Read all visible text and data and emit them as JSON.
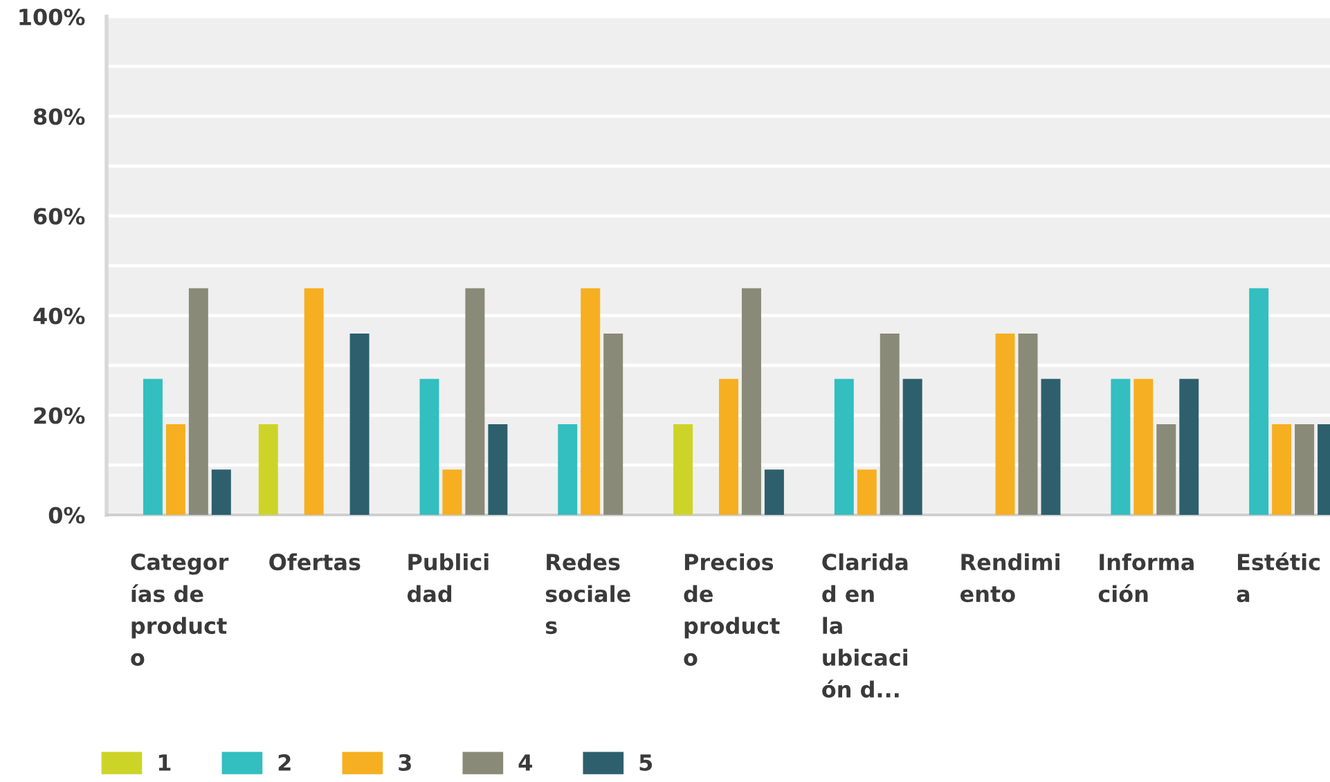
{
  "chart_data": {
    "type": "bar",
    "categories": [
      "Categor\nías de\nproduct\no",
      "Ofertas",
      "Publici\ndad",
      "Redes\nsociale\ns",
      "Precios\nde\nproduct\no",
      "Clarida\nd en\nla\nubicaci\nón d...",
      "Rendimi\nento",
      "Informa\nción",
      "Estétic\na"
    ],
    "series": [
      {
        "name": "1",
        "color": "#cdd428",
        "values": [
          0,
          18.2,
          0,
          0,
          18.2,
          0,
          0,
          0,
          0
        ]
      },
      {
        "name": "2",
        "color": "#33bec0",
        "values": [
          27.3,
          0,
          27.3,
          18.2,
          0,
          27.3,
          0,
          27.3,
          45.5
        ]
      },
      {
        "name": "3",
        "color": "#f6af21",
        "values": [
          18.2,
          45.5,
          9.1,
          45.5,
          27.3,
          9.1,
          36.4,
          27.3,
          18.2
        ]
      },
      {
        "name": "4",
        "color": "#898a78",
        "values": [
          45.5,
          0,
          45.5,
          36.4,
          45.5,
          36.4,
          36.4,
          18.2,
          18.2
        ]
      },
      {
        "name": "5",
        "color": "#2d606c",
        "values": [
          9.1,
          36.4,
          18.2,
          0,
          9.1,
          27.3,
          27.3,
          27.3,
          18.2
        ]
      }
    ],
    "ylim": [
      0,
      100
    ],
    "yticks": [
      {
        "value": 0,
        "label": "0%"
      },
      {
        "value": 10,
        "label": null
      },
      {
        "value": 20,
        "label": "20%"
      },
      {
        "value": 30,
        "label": null
      },
      {
        "value": 40,
        "label": "40%"
      },
      {
        "value": 50,
        "label": null
      },
      {
        "value": 60,
        "label": "60%"
      },
      {
        "value": 70,
        "label": null
      },
      {
        "value": 80,
        "label": "80%"
      },
      {
        "value": 90,
        "label": null
      },
      {
        "value": 100,
        "label": "100%"
      }
    ],
    "grid": "y",
    "legend": "bottom"
  }
}
